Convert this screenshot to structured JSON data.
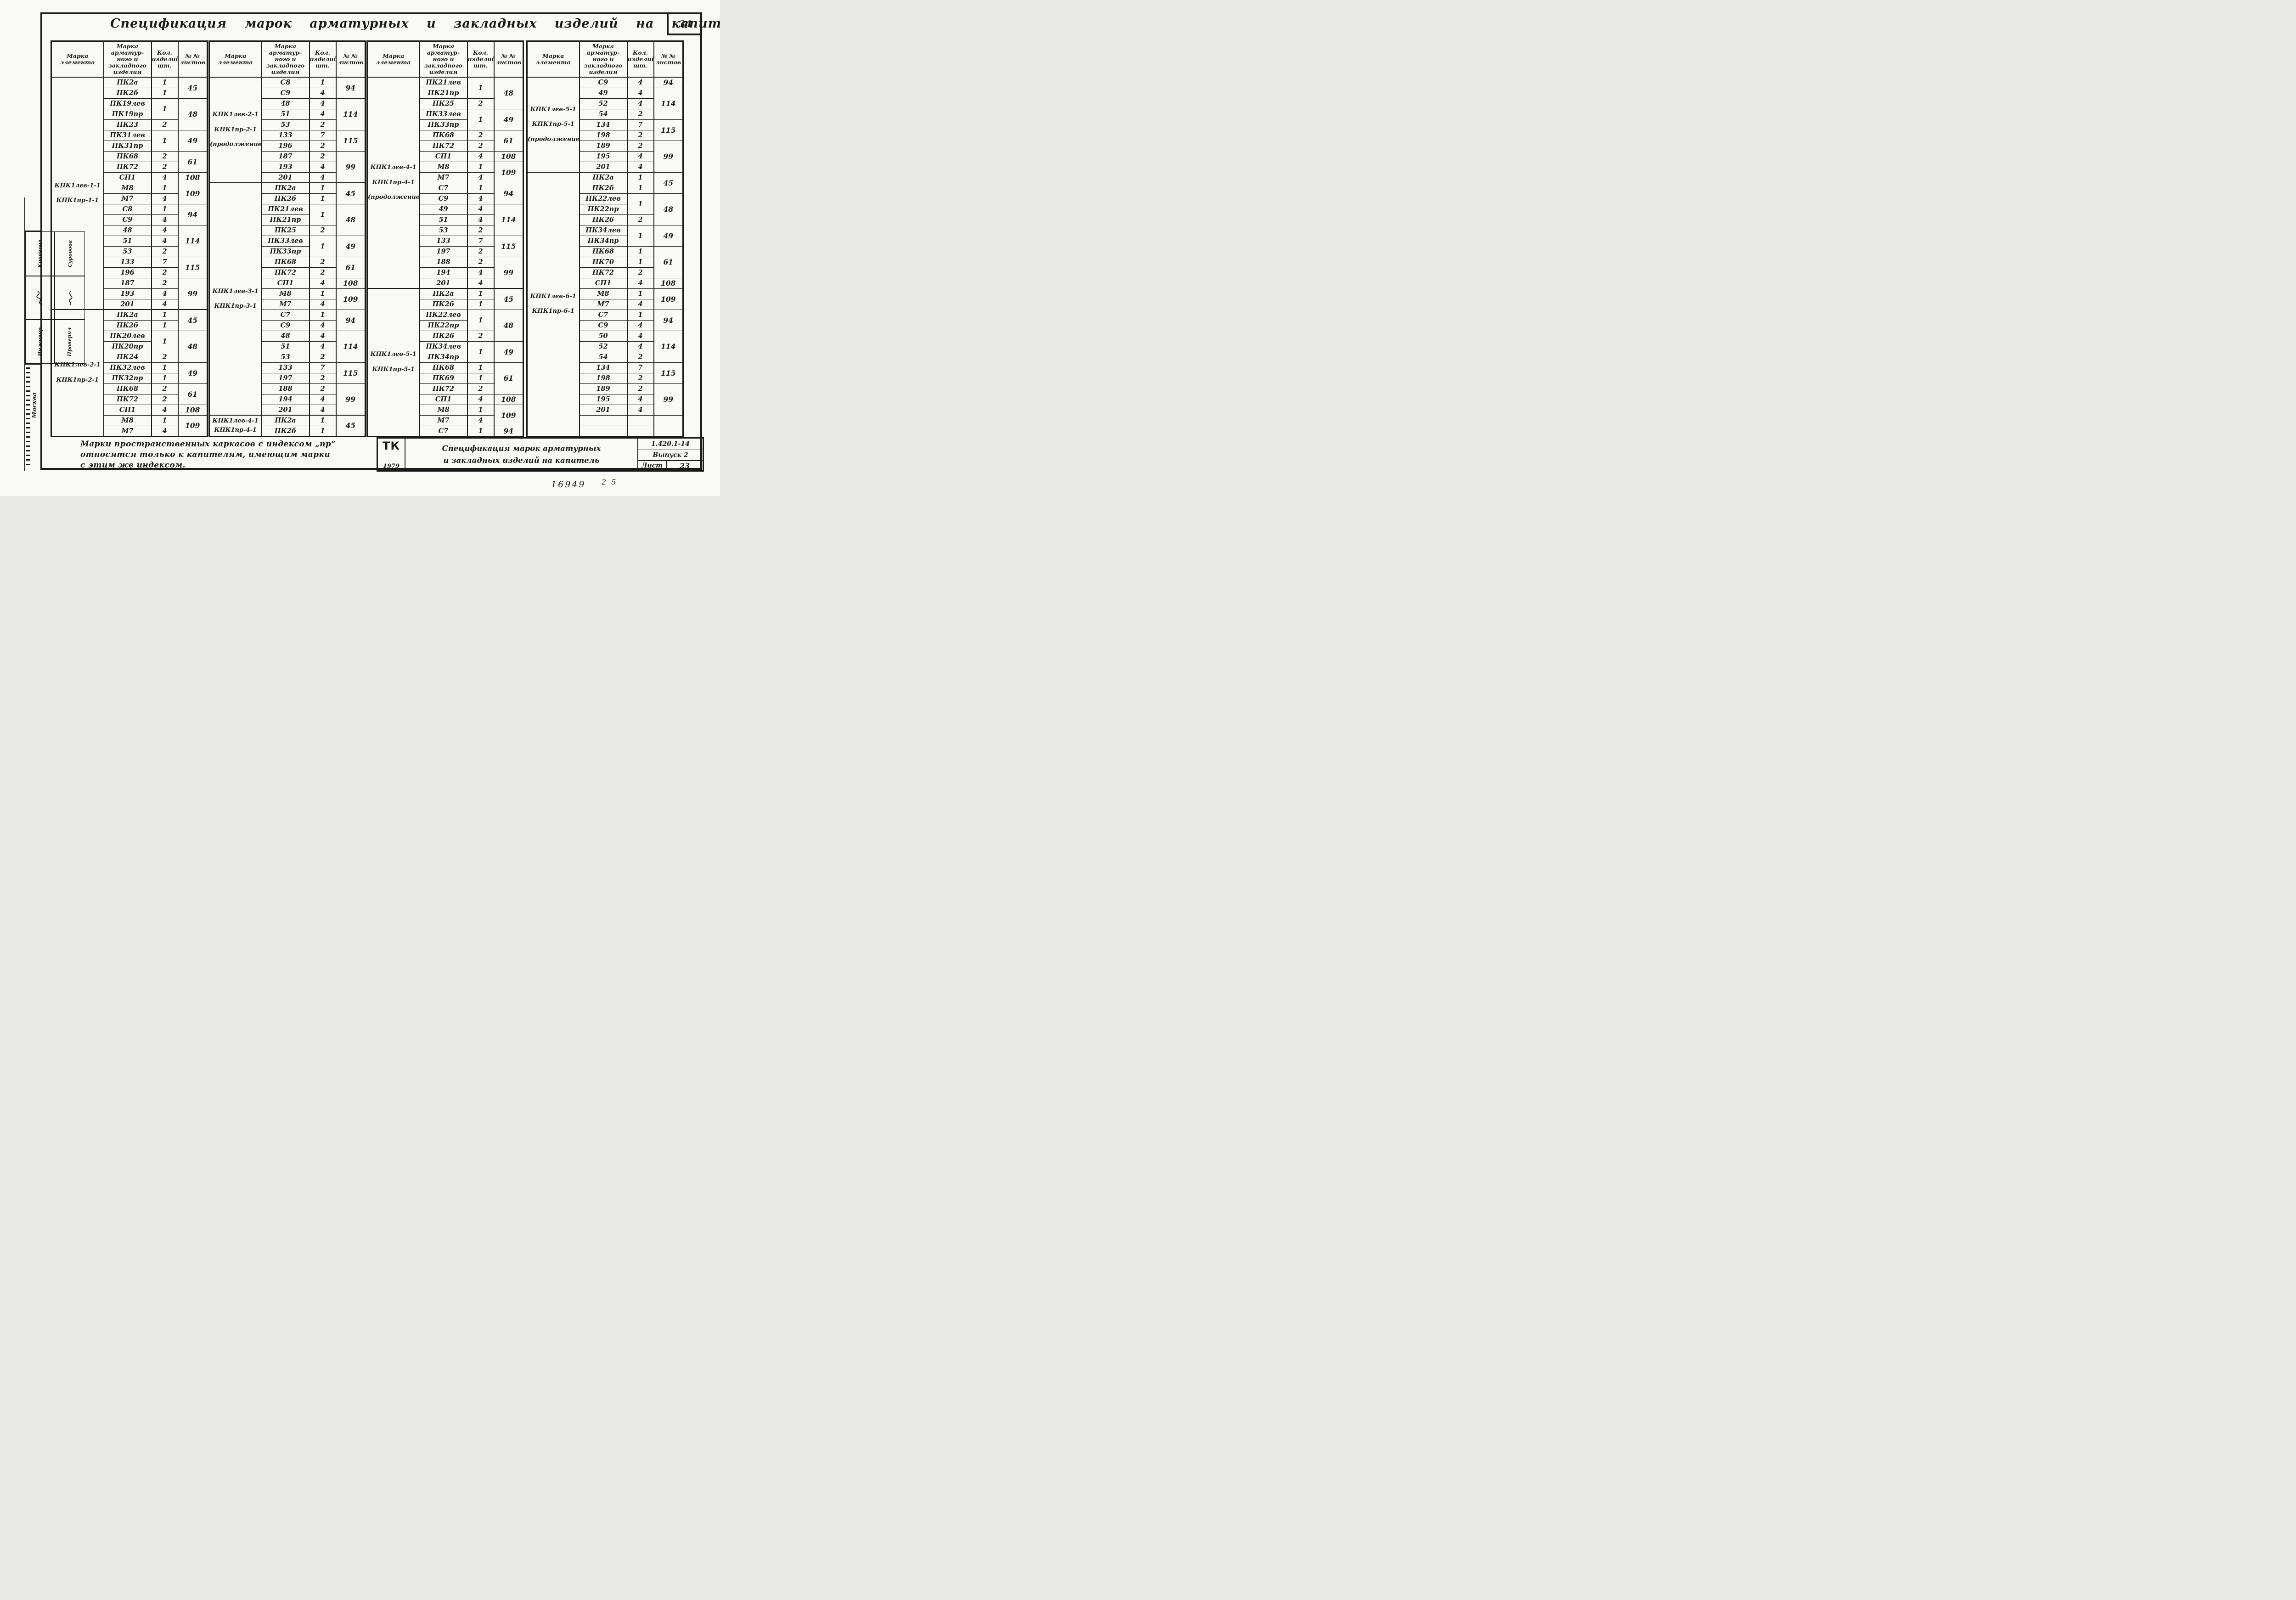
{
  "doc": {
    "title": "Спецификация марок арматурных и закладных изделий на капитель",
    "page_number": "34"
  },
  "headers": {
    "element": "Марка\nэлемента",
    "mark": "Марка\nарматур-\nного и\nзакладного\nизделия",
    "qty": "Кол.\nизделий\nшт.",
    "sheets": "№ №\nлистов"
  },
  "tables": [
    {
      "groups": [
        {
          "element": "КПК1лев-1-1\nКПК1пр-1-1",
          "rows": [
            {
              "m": "ПК2а",
              "q": "1",
              "s": "45",
              "ss": 2
            },
            {
              "m": "ПК2б",
              "q": "1"
            },
            {
              "m": "ПК19лев",
              "q": "1",
              "qs": 2,
              "s": "48",
              "ss": 3
            },
            {
              "m": "ПК19пр"
            },
            {
              "m": "ПК23",
              "q": "2"
            },
            {
              "m": "ПК31лев",
              "q": "1",
              "qs": 2,
              "s": "49",
              "ss": 2
            },
            {
              "m": "ПК31пр"
            },
            {
              "m": "ПК68",
              "q": "2",
              "s": "61",
              "ss": 2
            },
            {
              "m": "ПК72",
              "q": "2"
            },
            {
              "m": "СП1",
              "q": "4",
              "s": "108"
            },
            {
              "m": "М8",
              "q": "1",
              "s": "109",
              "ss": 2
            },
            {
              "m": "М7",
              "q": "4"
            },
            {
              "m": "С8",
              "q": "1",
              "s": "94",
              "ss": 2
            },
            {
              "m": "С9",
              "q": "4"
            },
            {
              "m": "48",
              "q": "4",
              "s": "114",
              "ss": 3
            },
            {
              "m": "51",
              "q": "4"
            },
            {
              "m": "53",
              "q": "2"
            },
            {
              "m": "133",
              "q": "7",
              "s": "115",
              "ss": 2
            },
            {
              "m": "196",
              "q": "2"
            },
            {
              "m": "187",
              "q": "2",
              "s": "99",
              "ss": 3
            },
            {
              "m": "193",
              "q": "4"
            },
            {
              "m": "201",
              "q": "4"
            }
          ]
        },
        {
          "element": "КПК1лев-2-1\nКПК1пр-2-1",
          "rows": [
            {
              "m": "ПК2а",
              "q": "1",
              "s": "45",
              "ss": 2
            },
            {
              "m": "ПК2б",
              "q": "1"
            },
            {
              "m": "ПК20лев",
              "q": "1",
              "qs": 2,
              "s": "48",
              "ss": 3
            },
            {
              "m": "ПК20пр"
            },
            {
              "m": "ПК24",
              "q": "2"
            },
            {
              "m": "ПК32лев",
              "q": "1",
              "s": "49",
              "ss": 2
            },
            {
              "m": "ПК32пр",
              "q": "1"
            },
            {
              "m": "ПК68",
              "q": "2",
              "s": "61",
              "ss": 2
            },
            {
              "m": "ПК72",
              "q": "2"
            },
            {
              "m": "СП1",
              "q": "4",
              "s": "108"
            },
            {
              "m": "М8",
              "q": "1",
              "s": "109",
              "ss": 2
            },
            {
              "m": "М7",
              "q": "4"
            }
          ]
        }
      ]
    },
    {
      "groups": [
        {
          "element": "КПК1лев-2-1\nКПК1пр-2-1\n(продолжение)",
          "rows": [
            {
              "m": "С8",
              "q": "1",
              "s": "94",
              "ss": 2
            },
            {
              "m": "С9",
              "q": "4"
            },
            {
              "m": "48",
              "q": "4",
              "s": "114",
              "ss": 3
            },
            {
              "m": "51",
              "q": "4"
            },
            {
              "m": "53",
              "q": "2"
            },
            {
              "m": "133",
              "q": "7",
              "s": "115",
              "ss": 2
            },
            {
              "m": "196",
              "q": "2"
            },
            {
              "m": "187",
              "q": "2",
              "s": "99",
              "ss": 3
            },
            {
              "m": "193",
              "q": "4"
            },
            {
              "m": "201",
              "q": "4"
            }
          ]
        },
        {
          "element": "КПК1лев-3-1\nКПК1пр-3-1",
          "rows": [
            {
              "m": "ПК2а",
              "q": "1",
              "s": "45",
              "ss": 2
            },
            {
              "m": "ПК2б",
              "q": "1"
            },
            {
              "m": "ПК21лев",
              "q": "1",
              "qs": 2,
              "s": "48",
              "ss": 3
            },
            {
              "m": "ПК21пр"
            },
            {
              "m": "ПК25",
              "q": "2"
            },
            {
              "m": "ПК33лев",
              "q": "1",
              "qs": 2,
              "s": "49",
              "ss": 2
            },
            {
              "m": "ПК33пр"
            },
            {
              "m": "ПК68",
              "q": "2",
              "s": "61",
              "ss": 2
            },
            {
              "m": "ПК72",
              "q": "2"
            },
            {
              "m": "СП1",
              "q": "4",
              "s": "108"
            },
            {
              "m": "М8",
              "q": "1",
              "s": "109",
              "ss": 2
            },
            {
              "m": "М7",
              "q": "4"
            },
            {
              "m": "С7",
              "q": "1",
              "s": "94",
              "ss": 2
            },
            {
              "m": "С9",
              "q": "4"
            },
            {
              "m": "48",
              "q": "4",
              "s": "114",
              "ss": 3
            },
            {
              "m": "51",
              "q": "4"
            },
            {
              "m": "53",
              "q": "2"
            },
            {
              "m": "133",
              "q": "7",
              "s": "115",
              "ss": 2
            },
            {
              "m": "197",
              "q": "2"
            },
            {
              "m": "188",
              "q": "2",
              "s": "99",
              "ss": 3
            },
            {
              "m": "194",
              "q": "4"
            },
            {
              "m": "201",
              "q": "4"
            }
          ]
        },
        {
          "element": "КПК1лев-4-1\nКПК1пр-4-1",
          "rows": [
            {
              "m": "ПК2а",
              "q": "1",
              "s": "45",
              "ss": 2
            },
            {
              "m": "ПК2б",
              "q": "1"
            }
          ]
        }
      ]
    },
    {
      "groups": [
        {
          "element": "КПК1лев-4-1\nКПК1пр-4-1\n(продолжение)",
          "rows": [
            {
              "m": "ПК21лев",
              "q": "1",
              "qs": 2,
              "s": "48",
              "ss": 3
            },
            {
              "m": "ПК21пр"
            },
            {
              "m": "ПК25",
              "q": "2"
            },
            {
              "m": "ПК33лев",
              "q": "1",
              "qs": 2,
              "s": "49",
              "ss": 2
            },
            {
              "m": "ПК33пр"
            },
            {
              "m": "ПК68",
              "q": "2",
              "s": "61",
              "ss": 2
            },
            {
              "m": "ПК72",
              "q": "2"
            },
            {
              "m": "СП1",
              "q": "4",
              "s": "108"
            },
            {
              "m": "М8",
              "q": "1",
              "s": "109",
              "ss": 2
            },
            {
              "m": "М7",
              "q": "4"
            },
            {
              "m": "С7",
              "q": "1",
              "s": "94",
              "ss": 2
            },
            {
              "m": "С9",
              "q": "4"
            },
            {
              "m": "49",
              "q": "4",
              "s": "114",
              "ss": 3
            },
            {
              "m": "51",
              "q": "4"
            },
            {
              "m": "53",
              "q": "2"
            },
            {
              "m": "133",
              "q": "7",
              "s": "115",
              "ss": 2
            },
            {
              "m": "197",
              "q": "2"
            },
            {
              "m": "188",
              "q": "2",
              "s": "99",
              "ss": 3
            },
            {
              "m": "194",
              "q": "4"
            },
            {
              "m": "201",
              "q": "4"
            }
          ]
        },
        {
          "element": "КПК1лев-5-1\nКПК1пр-5-1",
          "rows": [
            {
              "m": "ПК2а",
              "q": "1",
              "s": "45",
              "ss": 2
            },
            {
              "m": "ПК2б",
              "q": "1"
            },
            {
              "m": "ПК22лев",
              "q": "1",
              "qs": 2,
              "s": "48",
              "ss": 3
            },
            {
              "m": "ПК22пр"
            },
            {
              "m": "ПК26",
              "q": "2"
            },
            {
              "m": "ПК34лев",
              "q": "1",
              "qs": 2,
              "s": "49",
              "ss": 2
            },
            {
              "m": "ПК34пр"
            },
            {
              "m": "ПК68",
              "q": "1",
              "s": "61",
              "ss": 3
            },
            {
              "m": "ПК69",
              "q": "1"
            },
            {
              "m": "ПК72",
              "q": "2"
            },
            {
              "m": "СП1",
              "q": "4",
              "s": "108"
            },
            {
              "m": "М8",
              "q": "1",
              "s": "109",
              "ss": 2
            },
            {
              "m": "М7",
              "q": "4"
            },
            {
              "m": "С7",
              "q": "1",
              "s": "94"
            }
          ]
        }
      ]
    },
    {
      "groups": [
        {
          "element": "КПК1лев-5-1\nКПК1пр-5-1\n(продолжение)",
          "rows": [
            {
              "m": "С9",
              "q": "4",
              "s": "94"
            },
            {
              "m": "49",
              "q": "4",
              "s": "114",
              "ss": 3
            },
            {
              "m": "52",
              "q": "4"
            },
            {
              "m": "54",
              "q": "2"
            },
            {
              "m": "134",
              "q": "7",
              "s": "115",
              "ss": 2
            },
            {
              "m": "198",
              "q": "2"
            },
            {
              "m": "189",
              "q": "2",
              "s": "99",
              "ss": 3
            },
            {
              "m": "195",
              "q": "4"
            },
            {
              "m": "201",
              "q": "4"
            }
          ]
        },
        {
          "element": "КПК1лев-6-1\nКПК1пр-6-1",
          "rows": [
            {
              "m": "ПК2а",
              "q": "1",
              "s": "45",
              "ss": 2
            },
            {
              "m": "ПК2б",
              "q": "1"
            },
            {
              "m": "ПК22лев",
              "q": "1",
              "qs": 2,
              "s": "48",
              "ss": 3
            },
            {
              "m": "ПК22пр"
            },
            {
              "m": "ПК26",
              "q": "2"
            },
            {
              "m": "ПК34лев",
              "q": "1",
              "qs": 2,
              "s": "49",
              "ss": 2
            },
            {
              "m": "ПК34пр"
            },
            {
              "m": "ПК68",
              "q": "1",
              "s": "61",
              "ss": 3
            },
            {
              "m": "ПК70",
              "q": "1"
            },
            {
              "m": "ПК72",
              "q": "2"
            },
            {
              "m": "СП1",
              "q": "4",
              "s": "108"
            },
            {
              "m": "М8",
              "q": "1",
              "s": "109",
              "ss": 2
            },
            {
              "m": "М7",
              "q": "4"
            },
            {
              "m": "С7",
              "q": "1",
              "s": "94",
              "ss": 2
            },
            {
              "m": "С9",
              "q": "4"
            },
            {
              "m": "50",
              "q": "4",
              "s": "114",
              "ss": 3
            },
            {
              "m": "52",
              "q": "4"
            },
            {
              "m": "54",
              "q": "2"
            },
            {
              "m": "134",
              "q": "7",
              "s": "115",
              "ss": 2
            },
            {
              "m": "198",
              "q": "2"
            },
            {
              "m": "189",
              "q": "2",
              "s": "99",
              "ss": 3
            },
            {
              "m": "195",
              "q": "4"
            },
            {
              "m": "201",
              "q": "4"
            },
            {
              "m": "",
              "q": "",
              "s": "",
              "ss": 2
            },
            {
              "m": "",
              "q": ""
            }
          ]
        }
      ]
    }
  ],
  "note": {
    "text": "Марки пространственных каркасов с индексом „пр“\nотносятся только к капителям, имеющим марки\nс этим же индексом."
  },
  "tb": {
    "logo": "ТК",
    "year": "1979",
    "title": "Спецификация марок арматурных\nи закладных изделий на капитель",
    "code": "1.420.1-14",
    "issue": "Выпуск 2",
    "sheet_label": "Лист",
    "sheet_no": "23"
  },
  "stamp": {
    "role1": "Инженер",
    "role2": "Проверил",
    "name1": "Коченова",
    "name2": "Суровова",
    "city": "Москва"
  },
  "ann": {
    "number": "16949",
    "extra": "2 5"
  }
}
